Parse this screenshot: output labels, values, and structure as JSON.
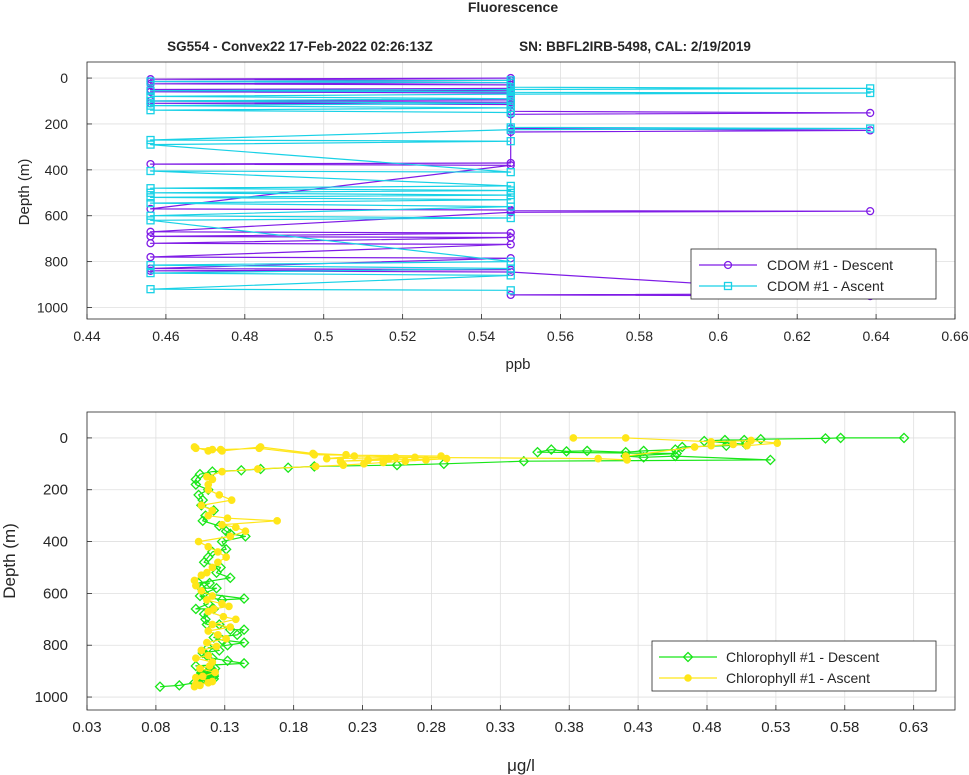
{
  "figure": {
    "title": "Fluorescence",
    "subtitle_left": "SG554 - Convex22 17-Feb-2022 02:26:13Z",
    "subtitle_right": "SN: BBFL2IRB-5498, CAL: 2/19/2019"
  },
  "chart_data": [
    {
      "type": "line",
      "xlabel": "ppb",
      "ylabel": "Depth (m)",
      "xlim": [
        0.44,
        0.66
      ],
      "ylim": [
        -70,
        1050
      ],
      "y_reversed": true,
      "grid": true,
      "legend_position": "bottom-right",
      "xticks": [
        "0.44",
        "0.46",
        "0.48",
        "0.5",
        "0.52",
        "0.54",
        "0.56",
        "0.58",
        "0.6",
        "0.62",
        "0.64",
        "0.66"
      ],
      "yticks": [
        "0",
        "200",
        "400",
        "600",
        "800",
        "1000"
      ],
      "series": [
        {
          "name": "CDOM #1 - Descent",
          "color": "#7f1ce6",
          "marker": "circle",
          "x": [
            0.5474,
            0.4561,
            0.5474,
            0.4561,
            0.5474,
            0.4561,
            0.5474,
            0.5474,
            0.4561,
            0.5474,
            0.4561,
            0.5474,
            0.5474,
            0.4561,
            0.5474,
            0.4561,
            0.5474,
            0.5474,
            0.6385,
            0.5474,
            0.5474,
            0.6385,
            0.5474,
            0.5474,
            0.4561,
            0.5474,
            0.4561,
            0.5474,
            0.5474,
            0.6385,
            0.5474,
            0.4561,
            0.5474,
            0.4561,
            0.5474,
            0.4561,
            0.5474,
            0.4561,
            0.5474,
            0.4561,
            0.5474,
            0.4561,
            0.5474,
            0.6385,
            0.5474,
            0.6385
          ],
          "y": [
            0,
            5,
            10,
            15,
            20,
            25,
            30,
            45,
            50,
            55,
            60,
            65,
            95,
            100,
            105,
            110,
            115,
            145,
            152,
            158,
            220,
            228,
            235,
            370,
            375,
            380,
            570,
            575,
            578,
            580,
            585,
            670,
            675,
            690,
            695,
            720,
            725,
            780,
            785,
            830,
            835,
            840,
            845,
            940,
            945,
            950
          ]
        },
        {
          "name": "CDOM #1 - Ascent",
          "color": "#19d1e6",
          "marker": "square",
          "x": [
            0.5474,
            0.4561,
            0.5474,
            0.5474,
            0.6385,
            0.5474,
            0.4561,
            0.5474,
            0.5474,
            0.6385,
            0.5474,
            0.4561,
            0.5474,
            0.4561,
            0.5474,
            0.4561,
            0.5474,
            0.4561,
            0.5474,
            0.5474,
            0.6385,
            0.5474,
            0.4561,
            0.5474,
            0.4561,
            0.5474,
            0.4561,
            0.5474,
            0.4561,
            0.5474,
            0.4561,
            0.5474,
            0.4561,
            0.5474,
            0.4561,
            0.5474,
            0.4561,
            0.5474,
            0.4561,
            0.5474,
            0.4561,
            0.5474,
            0.4561,
            0.5474,
            0.4561,
            0.5474
          ],
          "y": [
            10,
            15,
            20,
            40,
            45,
            50,
            55,
            60,
            62,
            65,
            70,
            80,
            90,
            100,
            110,
            120,
            130,
            140,
            150,
            215,
            220,
            225,
            270,
            275,
            290,
            410,
            405,
            470,
            480,
            490,
            500,
            510,
            520,
            530,
            545,
            560,
            600,
            610,
            620,
            800,
            815,
            830,
            850,
            860,
            920,
            925
          ]
        }
      ]
    },
    {
      "type": "line",
      "xlabel": "μg/l",
      "ylabel": "Depth (m)",
      "xlim": [
        0.03,
        0.66
      ],
      "ylim": [
        -100,
        1050
      ],
      "y_reversed": true,
      "grid": true,
      "legend_position": "bottom-right",
      "xticks": [
        "0.03",
        "0.08",
        "0.13",
        "0.18",
        "0.23",
        "0.28",
        "0.33",
        "0.38",
        "0.43",
        "0.48",
        "0.53",
        "0.58",
        "0.63"
      ],
      "yticks": [
        "0",
        "200",
        "400",
        "600",
        "800",
        "1000"
      ],
      "series": [
        {
          "name": "Chlorophyll #1 - Descent",
          "color": "#19e619",
          "marker": "diamond",
          "x": [
            0.623,
            0.577,
            0.566,
            0.519,
            0.507,
            0.493,
            0.478,
            0.508,
            0.494,
            0.462,
            0.457,
            0.434,
            0.421,
            0.393,
            0.378,
            0.367,
            0.357,
            0.458,
            0.421,
            0.434,
            0.457,
            0.526,
            0.347,
            0.289,
            0.255,
            0.195,
            0.176,
            0.156,
            0.142,
            0.121,
            0.112,
            0.109,
            0.109,
            0.118,
            0.111,
            0.114,
            0.113,
            0.122,
            0.116,
            0.114,
            0.126,
            0.131,
            0.134,
            0.145,
            0.128,
            0.131,
            0.121,
            0.118,
            0.115,
            0.127,
            0.124,
            0.134,
            0.111,
            0.119,
            0.113,
            0.124,
            0.115,
            0.144,
            0.128,
            0.112,
            0.118,
            0.109,
            0.122,
            0.115,
            0.116,
            0.117,
            0.126,
            0.134,
            0.144,
            0.139,
            0.122,
            0.128,
            0.144,
            0.132,
            0.118,
            0.126,
            0.114,
            0.117,
            0.121,
            0.132,
            0.144,
            0.109,
            0.123,
            0.118,
            0.113,
            0.122,
            0.112,
            0.119,
            0.122,
            0.113,
            0.115,
            0.121,
            0.113,
            0.119,
            0.121,
            0.117,
            0.122,
            0.113,
            0.117,
            0.119,
            0.122,
            0.112,
            0.117,
            0.108,
            0.097,
            0.083
          ],
          "y": [
            0,
            0,
            2,
            5,
            8,
            8,
            12,
            25,
            30,
            35,
            45,
            50,
            55,
            50,
            52,
            45,
            55,
            60,
            70,
            75,
            70,
            85,
            90,
            100,
            105,
            110,
            115,
            120,
            125,
            130,
            140,
            160,
            180,
            200,
            220,
            240,
            260,
            280,
            300,
            320,
            340,
            360,
            370,
            380,
            400,
            430,
            440,
            460,
            480,
            500,
            520,
            540,
            560,
            560,
            580,
            580,
            600,
            620,
            625,
            610,
            640,
            660,
            660,
            680,
            700,
            720,
            720,
            740,
            740,
            760,
            770,
            780,
            790,
            800,
            810,
            820,
            830,
            840,
            850,
            860,
            870,
            880,
            890,
            900,
            910,
            915,
            920,
            925,
            930,
            935,
            930,
            925,
            920,
            915,
            910,
            905,
            900,
            905,
            910,
            915,
            920,
            925,
            930,
            945,
            955,
            960
          ]
        },
        {
          "name": "Chlorophyll #1 - Ascent",
          "color": "#ffe619",
          "marker": "circle",
          "x": [
            0.108,
            0.112,
            0.109,
            0.118,
            0.121,
            0.109,
            0.114,
            0.123,
            0.112,
            0.119,
            0.121,
            0.109,
            0.118,
            0.113,
            0.124,
            0.117,
            0.131,
            0.125,
            0.118,
            0.134,
            0.121,
            0.138,
            0.129,
            0.118,
            0.122,
            0.133,
            0.128,
            0.117,
            0.121,
            0.113,
            0.109,
            0.108,
            0.113,
            0.117,
            0.121,
            0.125,
            0.131,
            0.125,
            0.118,
            0.111,
            0.134,
            0.145,
            0.138,
            0.128,
            0.168,
            0.132,
            0.118,
            0.121,
            0.113,
            0.135,
            0.126,
            0.118,
            0.118,
            0.121,
            0.117,
            0.128,
            0.154,
            0.196,
            0.216,
            0.231,
            0.245,
            0.261,
            0.276,
            0.291,
            0.214,
            0.234,
            0.249,
            0.268,
            0.204,
            0.224,
            0.287,
            0.195,
            0.155,
            0.127,
            0.109,
            0.108,
            0.118,
            0.121,
            0.128,
            0.156,
            0.194,
            0.218,
            0.254,
            0.401,
            0.422,
            0.421,
            0.471,
            0.483,
            0.499,
            0.509,
            0.531,
            0.512,
            0.483,
            0.421,
            0.383
          ],
          "y": [
            960,
            955,
            950,
            945,
            940,
            925,
            920,
            905,
            890,
            880,
            865,
            850,
            840,
            820,
            805,
            790,
            775,
            760,
            745,
            730,
            720,
            700,
            690,
            670,
            660,
            650,
            640,
            625,
            610,
            590,
            570,
            550,
            530,
            520,
            500,
            480,
            460,
            440,
            420,
            400,
            380,
            360,
            345,
            335,
            320,
            310,
            300,
            280,
            260,
            240,
            220,
            200,
            180,
            160,
            150,
            130,
            120,
            110,
            105,
            100,
            95,
            90,
            85,
            80,
            90,
            85,
            80,
            75,
            80,
            70,
            70,
            65,
            40,
            45,
            40,
            35,
            50,
            45,
            50,
            35,
            60,
            65,
            75,
            80,
            85,
            70,
            35,
            30,
            25,
            30,
            20,
            10,
            15,
            0,
            0
          ]
        }
      ]
    }
  ]
}
